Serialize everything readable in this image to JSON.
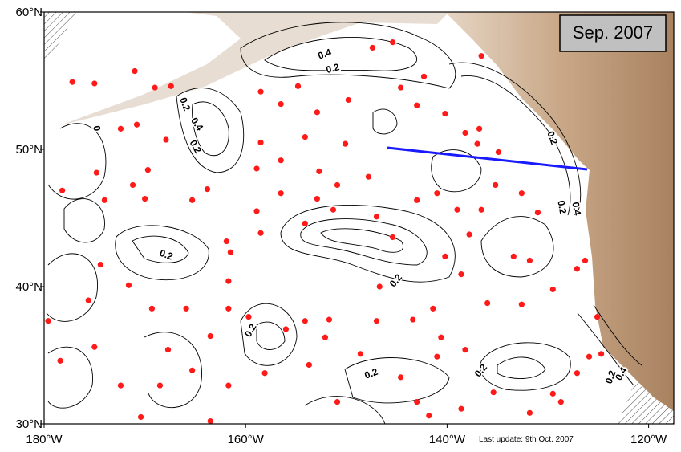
{
  "chart_data": {
    "type": "scatter",
    "date_label": "Sep. 2007",
    "footer": "Last update: 9th Oct. 2007",
    "xlim": [
      -180,
      -117.5
    ],
    "ylim": [
      30,
      60
    ],
    "xticks": [
      {
        "value": -180,
        "label": "180°W"
      },
      {
        "value": -160,
        "label": "160°W"
      },
      {
        "value": -140,
        "label": "140°W"
      },
      {
        "value": -120,
        "label": "120°W"
      }
    ],
    "yticks": [
      {
        "value": 30,
        "label": "30°N"
      },
      {
        "value": 40,
        "label": "40°N"
      },
      {
        "value": 50,
        "label": "50°N"
      },
      {
        "value": 60,
        "label": "60°N"
      }
    ],
    "color": "#ff1a1a",
    "contour_labels": [
      0.4,
      0.2,
      0.2,
      0.4,
      0.2,
      0,
      0.2,
      0.2,
      0.2,
      0.2,
      0.2,
      0.2,
      0.2,
      0.4,
      0.2,
      0.4
    ],
    "x": [
      -177.2,
      -175.0,
      -171.0,
      -169.0,
      -167.4,
      -170.8,
      -172.4,
      -167.9,
      -169.7,
      -171.2,
      -174.8,
      -178.2,
      -174.0,
      -170.0,
      -165.3,
      -163.8,
      -161.9,
      -161.5,
      -161.7,
      -161.7,
      -159.7,
      -163.5,
      -165.9,
      -169.3,
      -171.6,
      -174.4,
      -175.6,
      -179.6,
      -178.4,
      -175.0,
      -172.4,
      -170.4,
      -168.5,
      -167.7,
      -165.3,
      -163.5,
      -161.7,
      -158.1,
      -156.0,
      -154.1,
      -151.7,
      -152.1,
      -153.7,
      -150.9,
      -148.6,
      -147.0,
      -146.7,
      -145.4,
      -147.0,
      -151.3,
      -154.1,
      -152.9,
      -150.9,
      -147.8,
      -150.1,
      -152.7,
      -154.1,
      -158.5,
      -156.5,
      -158.9,
      -156.5,
      -158.9,
      -158.5,
      -156.5,
      -158.5,
      -154.8,
      -152.9,
      -149.8,
      -147.4,
      -145.4,
      -142.3,
      -143.0,
      -140.2,
      -138.2,
      -136.8,
      -137.0,
      -134.9,
      -135.2,
      -132.6,
      -131.0,
      -143.0,
      -141.0,
      -139.0,
      -136.6,
      -137.8,
      -140.2,
      -138.6,
      -133.4,
      -131.8,
      -126.3,
      -127.1,
      -129.5,
      -132.6,
      -136.0,
      -141.4,
      -143.4,
      -140.6,
      -138.2,
      -141.0,
      -144.6,
      -143.0,
      -141.8,
      -138.6,
      -135.4,
      -131.8,
      -128.7,
      -127.1,
      -125.1,
      -124.7,
      -125.9,
      -129.5,
      -144.6,
      -136.6
    ],
    "values": [
      54.9,
      54.8,
      55.7,
      54.5,
      54.6,
      51.8,
      51.5,
      50.7,
      48.5,
      47.4,
      48.3,
      47.0,
      46.3,
      46.4,
      46.3,
      47.1,
      43.3,
      42.5,
      40.4,
      38.4,
      37.8,
      36.4,
      38.4,
      38.4,
      40.1,
      41.6,
      39.0,
      37.5,
      34.6,
      35.6,
      32.8,
      30.5,
      32.8,
      35.4,
      33.9,
      30.2,
      32.8,
      33.7,
      36.9,
      37.5,
      37.6,
      36.3,
      34.3,
      31.6,
      35.1,
      37.5,
      40.0,
      43.6,
      45.1,
      45.6,
      44.6,
      46.4,
      47.4,
      48.0,
      50.4,
      48.4,
      50.9,
      50.5,
      49.2,
      48.6,
      46.8,
      45.5,
      43.9,
      53.3,
      54.2,
      54.6,
      52.7,
      53.6,
      57.4,
      57.8,
      55.3,
      53.2,
      52.6,
      51.2,
      51.5,
      50.4,
      49.8,
      47.4,
      46.8,
      45.4,
      46.3,
      46.8,
      45.6,
      45.6,
      43.8,
      42.2,
      40.9,
      42.2,
      41.9,
      41.9,
      41.3,
      39.8,
      38.7,
      38.8,
      38.4,
      37.6,
      36.3,
      35.4,
      34.9,
      33.4,
      31.6,
      30.6,
      31.1,
      32.3,
      30.8,
      31.6,
      33.7,
      37.8,
      35.1,
      34.9,
      32.2,
      54.5,
      56.8
    ]
  }
}
